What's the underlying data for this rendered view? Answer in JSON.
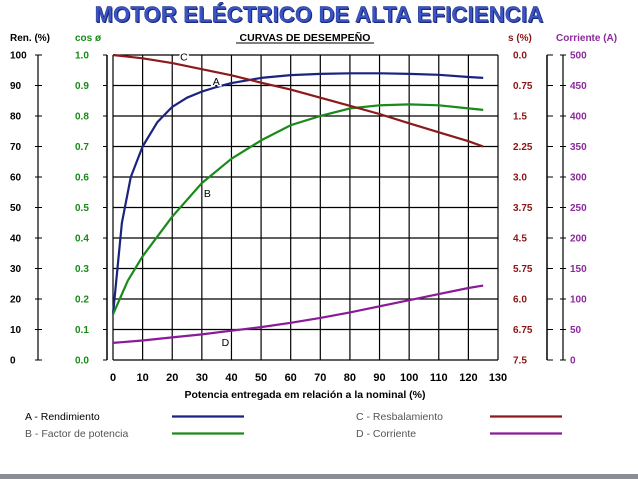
{
  "title": "MOTOR ELÉCTRICO DE ALTA EFICIENCIA",
  "chart_data": {
    "type": "line",
    "title": "CURVAS DE DESEMPEÑO",
    "xlabel": "Potencia entregada em relación a la nominal (%)",
    "xlim": [
      0,
      130
    ],
    "x_ticks": [
      "0",
      "10",
      "20",
      "30",
      "40",
      "50",
      "60",
      "70",
      "80",
      "90",
      "100",
      "110",
      "120",
      "130"
    ],
    "axes": {
      "ren": {
        "label": "Ren. (%)",
        "color": "#000000",
        "ticks": [
          "100",
          "90",
          "80",
          "70",
          "60",
          "50",
          "40",
          "30",
          "20",
          "10",
          "0"
        ]
      },
      "cos": {
        "label": "cos ø",
        "color": "#178a17",
        "ticks": [
          "1.0",
          "0.9",
          "0.8",
          "0.7",
          "0.6",
          "0.5",
          "0.4",
          "0.3",
          "0.2",
          "0.1",
          "0.0"
        ]
      },
      "s": {
        "label": "s (%)",
        "color": "#8b1515",
        "ticks": [
          "0.0",
          "0.75",
          "1.5",
          "2.25",
          "3.0",
          "3.75",
          "4.5",
          "5.75",
          "6.0",
          "6.75",
          "7.5"
        ]
      },
      "corr": {
        "label": "Corriente (A)",
        "color": "#8b2a9b",
        "ticks": [
          "500",
          "450",
          "400",
          "350",
          "300",
          "250",
          "200",
          "150",
          "100",
          "50",
          "0"
        ]
      }
    },
    "series": [
      {
        "name": "A - Rendimiento",
        "marker": "A",
        "axis": "Ren. (%)",
        "color": "#1a237e",
        "x": [
          0,
          3,
          6,
          10,
          15,
          20,
          25,
          30,
          35,
          40,
          50,
          60,
          70,
          80,
          90,
          100,
          110,
          120,
          125
        ],
        "y": [
          15,
          45,
          60,
          70,
          78,
          83,
          86,
          88,
          89.5,
          90.8,
          92.5,
          93.4,
          93.8,
          94,
          94,
          93.8,
          93.5,
          92.8,
          92.5
        ]
      },
      {
        "name": "B - Factor de potencia",
        "marker": "B",
        "axis": "cos ø",
        "color": "#1a8a1a",
        "x": [
          0,
          5,
          10,
          20,
          30,
          40,
          50,
          60,
          70,
          80,
          90,
          100,
          110,
          120,
          125
        ],
        "y": [
          0.15,
          0.26,
          0.34,
          0.47,
          0.58,
          0.66,
          0.72,
          0.77,
          0.8,
          0.825,
          0.835,
          0.838,
          0.835,
          0.825,
          0.82
        ]
      },
      {
        "name": "C - Resbalamiento",
        "marker": "C",
        "axis": "s (%)",
        "color": "#8b1a1a",
        "x": [
          0,
          10,
          20,
          30,
          40,
          50,
          60,
          70,
          80,
          90,
          100,
          110,
          120,
          125
        ],
        "y": [
          0,
          0.08,
          0.2,
          0.35,
          0.5,
          0.68,
          0.85,
          1.05,
          1.25,
          1.45,
          1.68,
          1.9,
          2.12,
          2.25
        ]
      },
      {
        "name": "D - Corriente",
        "marker": "D",
        "axis": "Corriente (A)",
        "color": "#8b1a9b",
        "x": [
          0,
          10,
          20,
          30,
          40,
          50,
          60,
          70,
          80,
          90,
          100,
          110,
          120,
          125
        ],
        "y": [
          28,
          32,
          37,
          42,
          48,
          54,
          61,
          69,
          78,
          88,
          98,
          108,
          118,
          122
        ]
      }
    ],
    "legend": [
      {
        "text": "A - Rendimiento",
        "color": "#1a237e"
      },
      {
        "text": "B - Factor de potencia",
        "color": "#1a8a1a"
      },
      {
        "text": "C - Resbalamiento",
        "color": "#8b1a1a"
      },
      {
        "text": "D - Corriente",
        "color": "#8b1a9b"
      }
    ],
    "grid": true
  }
}
